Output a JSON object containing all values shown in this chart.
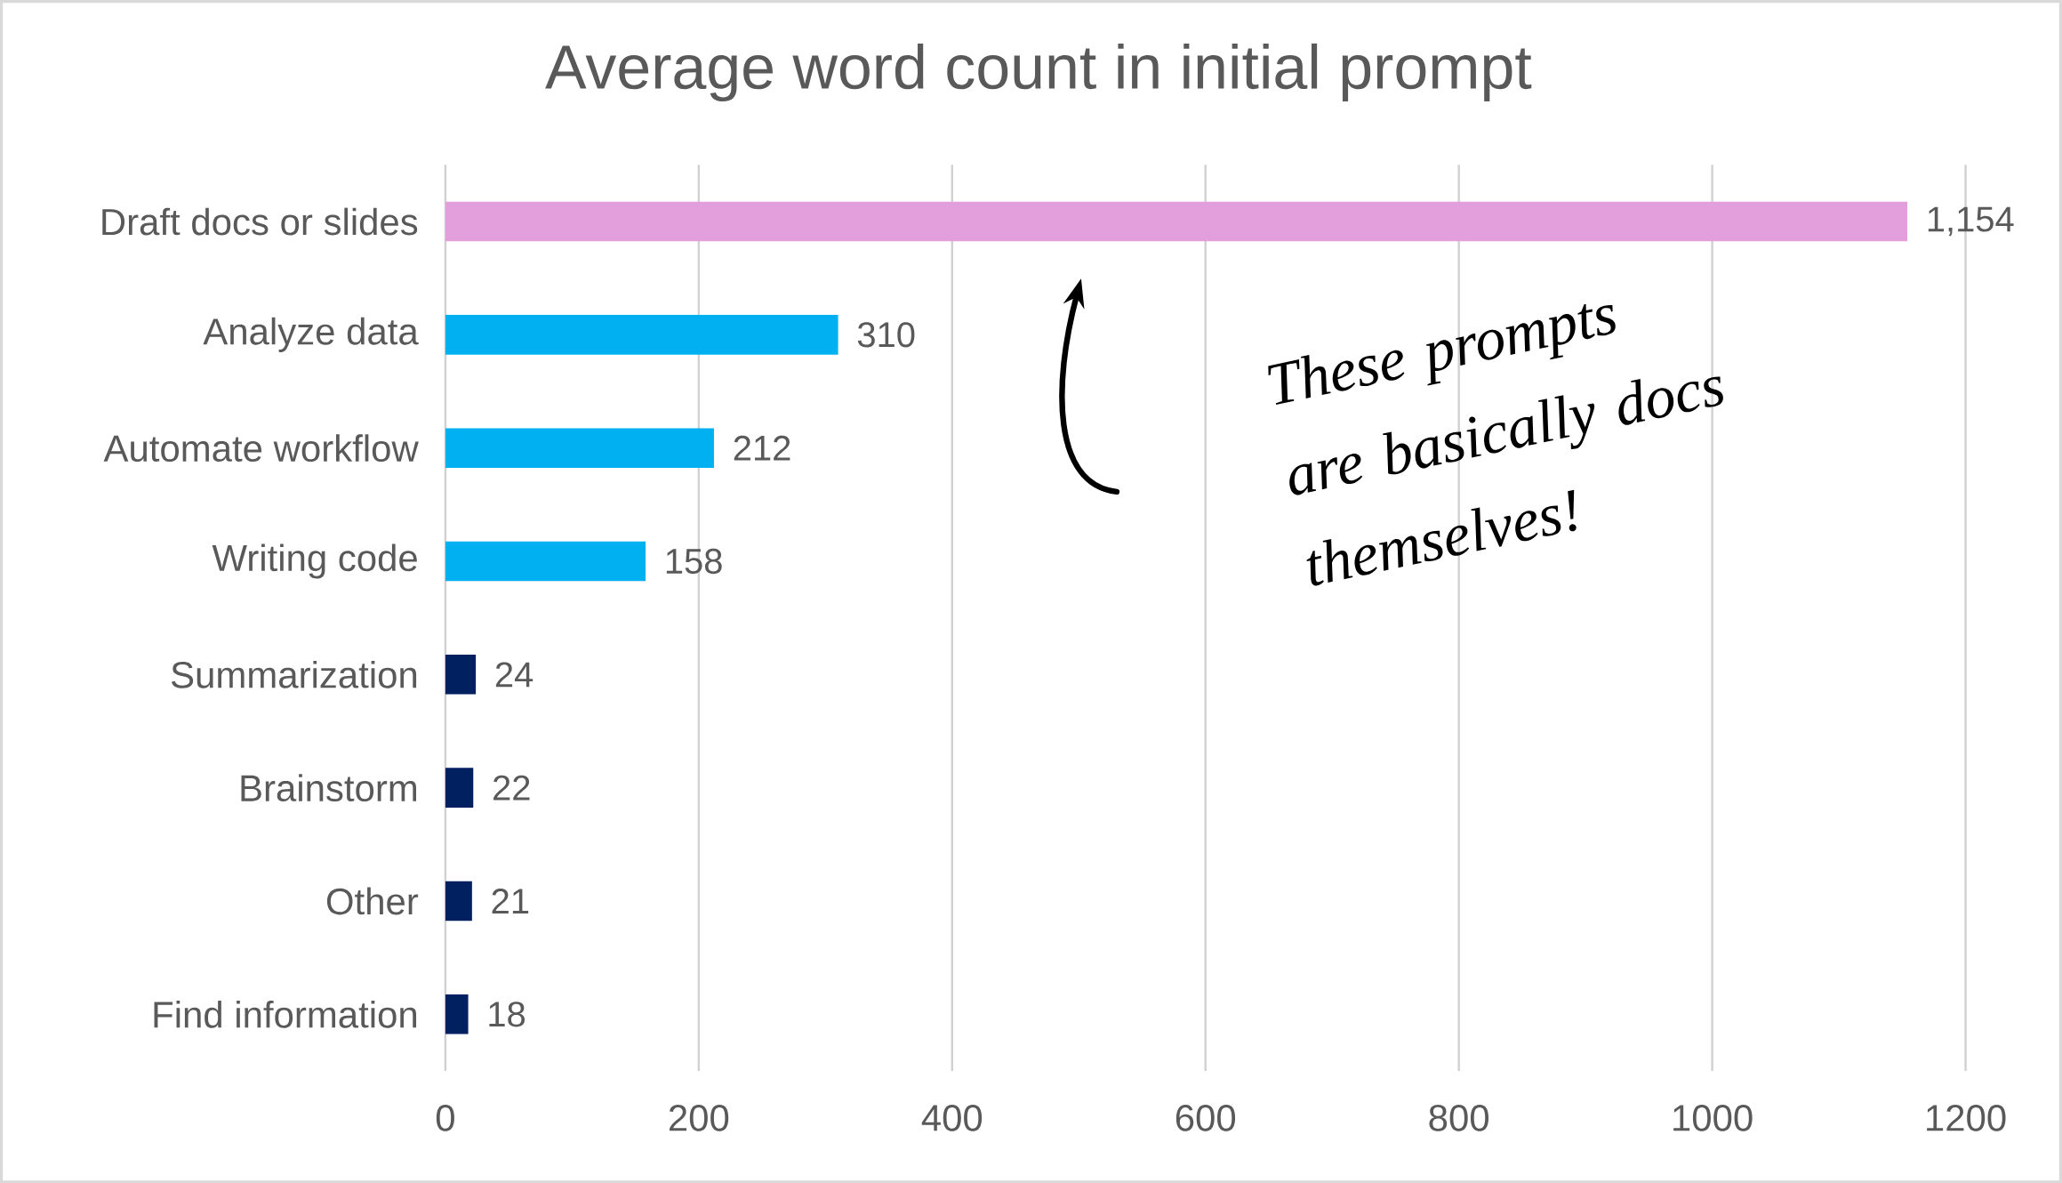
{
  "chart_data": {
    "type": "bar",
    "orientation": "horizontal",
    "title": "Average word count in initial prompt",
    "categories": [
      "Draft docs or slides",
      "Analyze data",
      "Automate workflow",
      "Writing code",
      "Summarization",
      "Brainstorm",
      "Other",
      "Find information"
    ],
    "values": [
      1154,
      310,
      212,
      158,
      24,
      22,
      21,
      18
    ],
    "value_labels": [
      "1,154",
      "310",
      "212",
      "158",
      "24",
      "22",
      "21",
      "18"
    ],
    "colors": [
      "#e39fdc",
      "#00b0f0",
      "#00b0f0",
      "#00b0f0",
      "#002060",
      "#002060",
      "#002060",
      "#002060"
    ],
    "xlim": [
      0,
      1200
    ],
    "xticks": [
      0,
      200,
      400,
      600,
      800,
      1000,
      1200
    ],
    "grid": "x",
    "annotations": [
      "These prompts are basically docs themselves!"
    ]
  }
}
